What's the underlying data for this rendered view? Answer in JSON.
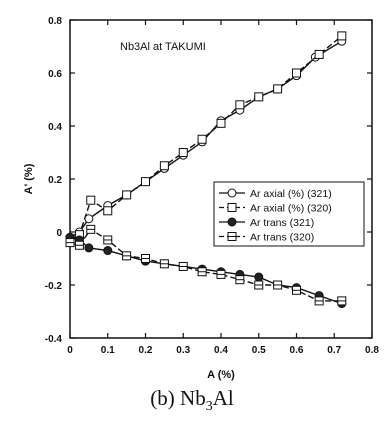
{
  "chart_data": {
    "type": "line",
    "annotation": "Nb3Al  at TAKUMI",
    "xlabel": "A (%)",
    "ylabel": "A' (%)",
    "xlim": [
      0,
      0.8
    ],
    "ylim": [
      -0.4,
      0.8
    ],
    "xticks": [
      "0",
      "0.1",
      "0.2",
      "0.3",
      "0.4",
      "0.5",
      "0.6",
      "0.7",
      "0.8"
    ],
    "yticks": [
      "0.8",
      "0.6",
      "0.4",
      "0.2",
      "0",
      "-0.2",
      "-0.4"
    ],
    "legend_position": "right-middle",
    "series": [
      {
        "name": "Ar axial (%) (321)",
        "marker": "circle-open",
        "line": "solid",
        "x": [
          0,
          0.025,
          0.05,
          0.1,
          0.15,
          0.2,
          0.25,
          0.3,
          0.35,
          0.4,
          0.45,
          0.5,
          0.55,
          0.6,
          0.65,
          0.72
        ],
        "y": [
          -0.02,
          0.0,
          0.05,
          0.1,
          0.14,
          0.19,
          0.24,
          0.29,
          0.34,
          0.42,
          0.46,
          0.51,
          0.54,
          0.59,
          0.66,
          0.72
        ]
      },
      {
        "name": "Ar axial (%) (320)",
        "marker": "square-open",
        "line": "dashed",
        "x": [
          0,
          0.025,
          0.055,
          0.1,
          0.15,
          0.2,
          0.25,
          0.3,
          0.35,
          0.4,
          0.45,
          0.5,
          0.55,
          0.6,
          0.66,
          0.72
        ],
        "y": [
          -0.03,
          -0.01,
          0.12,
          0.08,
          0.14,
          0.19,
          0.25,
          0.3,
          0.35,
          0.41,
          0.48,
          0.51,
          0.54,
          0.6,
          0.67,
          0.74
        ]
      },
      {
        "name": "Ar trans (321)",
        "marker": "circle-filled",
        "line": "solid",
        "x": [
          0,
          0.025,
          0.05,
          0.1,
          0.15,
          0.2,
          0.25,
          0.3,
          0.35,
          0.4,
          0.45,
          0.5,
          0.55,
          0.6,
          0.66,
          0.72
        ],
        "y": [
          -0.02,
          -0.03,
          -0.06,
          -0.07,
          -0.09,
          -0.11,
          -0.12,
          -0.13,
          -0.14,
          -0.15,
          -0.16,
          -0.17,
          -0.2,
          -0.21,
          -0.24,
          -0.27
        ]
      },
      {
        "name": "Ar trans (320)",
        "marker": "square-crossed",
        "line": "dashed",
        "x": [
          0,
          0.025,
          0.055,
          0.1,
          0.15,
          0.2,
          0.25,
          0.3,
          0.35,
          0.4,
          0.45,
          0.5,
          0.55,
          0.6,
          0.66,
          0.72
        ],
        "y": [
          -0.04,
          -0.05,
          0.01,
          -0.03,
          -0.09,
          -0.1,
          -0.12,
          -0.13,
          -0.15,
          -0.16,
          -0.18,
          -0.2,
          -0.2,
          -0.22,
          -0.26,
          -0.26
        ]
      }
    ]
  },
  "caption": {
    "prefix": "(b) Nb",
    "sub": "3",
    "suffix": "Al"
  }
}
